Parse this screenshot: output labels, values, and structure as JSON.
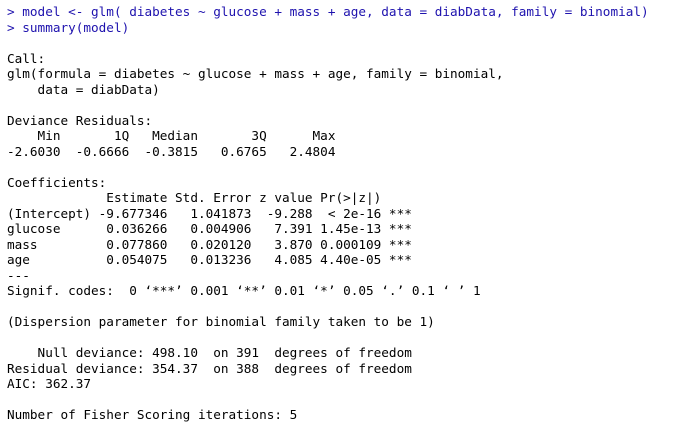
{
  "commands": [
    "> model <- glm( diabetes ~ glucose + mass + age, data = diabData, family = binomial)",
    "> summary(model)"
  ],
  "output": {
    "call_header": "Call:",
    "call_lines": [
      "glm(formula = diabetes ~ glucose + mass + age, family = binomial,",
      "    data = diabData)"
    ],
    "residuals_header": "Deviance Residuals:",
    "residuals_labels": "    Min       1Q   Median       3Q      Max  ",
    "residuals_values": "-2.6030  -0.6666  -0.3815   0.6765   2.4804  ",
    "coef_header": "Coefficients:",
    "coef_columns": "             Estimate Std. Error z value Pr(>|z|)    ",
    "coef_rows": [
      "(Intercept) -9.677346   1.041873  -9.288  < 2e-16 ***",
      "glucose      0.036266   0.004906   7.391 1.45e-13 ***",
      "mass         0.077860   0.020120   3.870 0.000109 ***",
      "age          0.054075   0.013236   4.085 4.40e-05 ***"
    ],
    "separator": "---",
    "signif_codes": "Signif. codes:  0 ‘***’ 0.001 ‘**’ 0.01 ‘*’ 0.05 ‘.’ 0.1 ‘ ’ 1",
    "dispersion": "(Dispersion parameter for binomial family taken to be 1)",
    "null_deviance": "    Null deviance: 498.10  on 391  degrees of freedom",
    "residual_deviance": "Residual deviance: 354.37  on 388  degrees of freedom",
    "aic": "AIC: 362.37",
    "fisher": "Number of Fisher Scoring iterations: 5"
  },
  "colors": {
    "command": "#1E12AE",
    "output": "#000000",
    "background": "#FFFFFF"
  }
}
